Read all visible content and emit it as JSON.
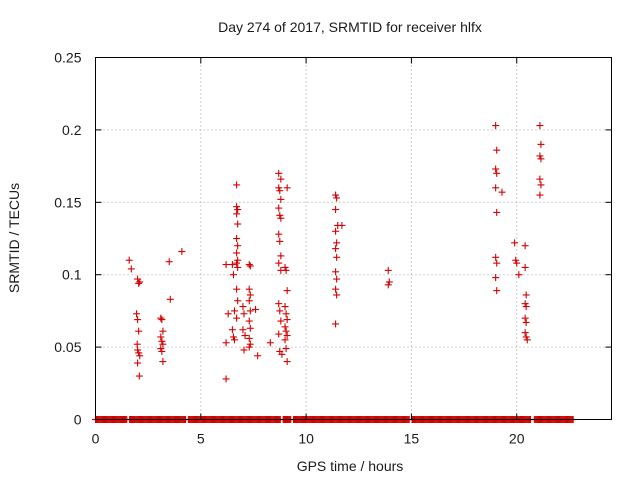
{
  "chart_data": {
    "type": "scatter",
    "title": "Day 274 of 2017, SRMTID for receiver hlfx",
    "xlabel": "GPS time / hours",
    "ylabel": "SRMTID / TECUs",
    "xlim": [
      0,
      24.5
    ],
    "ylim": [
      0,
      0.25
    ],
    "xticks": [
      0,
      5,
      10,
      15,
      20
    ],
    "xtick_labels": [
      "0",
      "5",
      "10",
      "15",
      "20"
    ],
    "yticks": [
      0,
      0.05,
      0.1,
      0.15,
      0.2,
      0.25
    ],
    "ytick_labels": [
      "0",
      "0.05",
      "0.1",
      "0.15",
      "0.2",
      "0.25"
    ],
    "grid": true,
    "marker": "+",
    "color": "#d40000",
    "zero_band": {
      "from": 0.0,
      "to": 22.7,
      "gaps": [
        [
          1.5,
          1.6
        ],
        [
          4.3,
          4.4
        ],
        [
          8.8,
          8.9
        ],
        [
          9.3,
          9.4
        ],
        [
          14.9,
          15.0
        ],
        [
          20.7,
          20.8
        ]
      ]
    },
    "series": [
      {
        "name": "SRMTID",
        "points": [
          [
            1.6,
            0.11
          ],
          [
            1.7,
            0.104
          ],
          [
            2.0,
            0.097
          ],
          [
            2.05,
            0.094
          ],
          [
            1.95,
            0.073
          ],
          [
            2.0,
            0.069
          ],
          [
            2.05,
            0.061
          ],
          [
            1.98,
            0.052
          ],
          [
            2.0,
            0.048
          ],
          [
            2.05,
            0.046
          ],
          [
            2.1,
            0.044
          ],
          [
            2.0,
            0.039
          ],
          [
            2.08,
            0.03
          ],
          [
            2.1,
            0.095
          ],
          [
            3.1,
            0.07
          ],
          [
            3.15,
            0.069
          ],
          [
            3.2,
            0.061
          ],
          [
            3.1,
            0.057
          ],
          [
            3.15,
            0.054
          ],
          [
            3.2,
            0.052
          ],
          [
            3.1,
            0.049
          ],
          [
            3.15,
            0.047
          ],
          [
            3.2,
            0.04
          ],
          [
            3.5,
            0.109
          ],
          [
            3.55,
            0.083
          ],
          [
            4.1,
            0.116
          ],
          [
            6.2,
            0.107
          ],
          [
            6.3,
            0.073
          ],
          [
            6.2,
            0.053
          ],
          [
            6.2,
            0.028
          ],
          [
            6.5,
            0.107
          ],
          [
            6.55,
            0.1
          ],
          [
            6.6,
            0.075
          ],
          [
            6.5,
            0.062
          ],
          [
            6.55,
            0.057
          ],
          [
            6.6,
            0.055
          ],
          [
            6.7,
            0.162
          ],
          [
            6.7,
            0.147
          ],
          [
            6.75,
            0.145
          ],
          [
            6.7,
            0.142
          ],
          [
            6.75,
            0.135
          ],
          [
            6.7,
            0.125
          ],
          [
            6.75,
            0.12
          ],
          [
            6.7,
            0.115
          ],
          [
            6.75,
            0.11
          ],
          [
            6.7,
            0.108
          ],
          [
            6.75,
            0.105
          ],
          [
            6.7,
            0.09
          ],
          [
            6.75,
            0.082
          ],
          [
            6.7,
            0.07
          ],
          [
            7.0,
            0.078
          ],
          [
            7.05,
            0.073
          ],
          [
            7.0,
            0.062
          ],
          [
            7.1,
            0.058
          ],
          [
            7.05,
            0.048
          ],
          [
            7.3,
            0.107
          ],
          [
            7.35,
            0.106
          ],
          [
            7.3,
            0.09
          ],
          [
            7.35,
            0.086
          ],
          [
            7.3,
            0.082
          ],
          [
            7.35,
            0.075
          ],
          [
            7.3,
            0.068
          ],
          [
            7.35,
            0.063
          ],
          [
            7.3,
            0.056
          ],
          [
            7.35,
            0.052
          ],
          [
            7.3,
            0.05
          ],
          [
            7.6,
            0.076
          ],
          [
            7.7,
            0.044
          ],
          [
            8.3,
            0.053
          ],
          [
            8.7,
            0.17
          ],
          [
            8.8,
            0.166
          ],
          [
            8.7,
            0.16
          ],
          [
            8.75,
            0.158
          ],
          [
            8.8,
            0.152
          ],
          [
            8.7,
            0.146
          ],
          [
            8.75,
            0.141
          ],
          [
            8.8,
            0.139
          ],
          [
            8.7,
            0.128
          ],
          [
            8.75,
            0.123
          ],
          [
            8.8,
            0.113
          ],
          [
            8.7,
            0.108
          ],
          [
            8.8,
            0.103
          ],
          [
            8.7,
            0.08
          ],
          [
            8.75,
            0.075
          ],
          [
            8.8,
            0.068
          ],
          [
            8.7,
            0.059
          ],
          [
            8.75,
            0.047
          ],
          [
            8.85,
            0.045
          ],
          [
            9.1,
            0.16
          ],
          [
            9.0,
            0.105
          ],
          [
            9.05,
            0.103
          ],
          [
            9.1,
            0.089
          ],
          [
            9.0,
            0.078
          ],
          [
            9.05,
            0.073
          ],
          [
            9.1,
            0.069
          ],
          [
            9.0,
            0.064
          ],
          [
            9.05,
            0.061
          ],
          [
            9.1,
            0.058
          ],
          [
            9.0,
            0.055
          ],
          [
            9.05,
            0.049
          ],
          [
            9.1,
            0.04
          ],
          [
            11.4,
            0.155
          ],
          [
            11.45,
            0.153
          ],
          [
            11.4,
            0.145
          ],
          [
            11.5,
            0.134
          ],
          [
            11.4,
            0.13
          ],
          [
            11.45,
            0.122
          ],
          [
            11.4,
            0.118
          ],
          [
            11.45,
            0.112
          ],
          [
            11.4,
            0.102
          ],
          [
            11.45,
            0.097
          ],
          [
            11.4,
            0.09
          ],
          [
            11.45,
            0.086
          ],
          [
            11.4,
            0.066
          ],
          [
            11.7,
            0.134
          ],
          [
            13.9,
            0.103
          ],
          [
            13.95,
            0.095
          ],
          [
            13.9,
            0.093
          ],
          [
            19.0,
            0.203
          ],
          [
            19.05,
            0.186
          ],
          [
            19.0,
            0.173
          ],
          [
            19.05,
            0.17
          ],
          [
            19.0,
            0.16
          ],
          [
            19.05,
            0.143
          ],
          [
            19.0,
            0.112
          ],
          [
            19.05,
            0.108
          ],
          [
            19.0,
            0.098
          ],
          [
            19.05,
            0.089
          ],
          [
            19.3,
            0.157
          ],
          [
            19.9,
            0.122
          ],
          [
            19.95,
            0.11
          ],
          [
            20.0,
            0.108
          ],
          [
            20.1,
            0.1
          ],
          [
            20.4,
            0.12
          ],
          [
            20.4,
            0.105
          ],
          [
            20.45,
            0.086
          ],
          [
            20.4,
            0.08
          ],
          [
            20.45,
            0.078
          ],
          [
            20.4,
            0.07
          ],
          [
            20.45,
            0.067
          ],
          [
            20.4,
            0.06
          ],
          [
            20.45,
            0.057
          ],
          [
            20.5,
            0.055
          ],
          [
            21.1,
            0.203
          ],
          [
            21.15,
            0.19
          ],
          [
            21.1,
            0.182
          ],
          [
            21.15,
            0.18
          ],
          [
            21.1,
            0.166
          ],
          [
            21.15,
            0.162
          ],
          [
            21.1,
            0.155
          ]
        ]
      }
    ]
  }
}
